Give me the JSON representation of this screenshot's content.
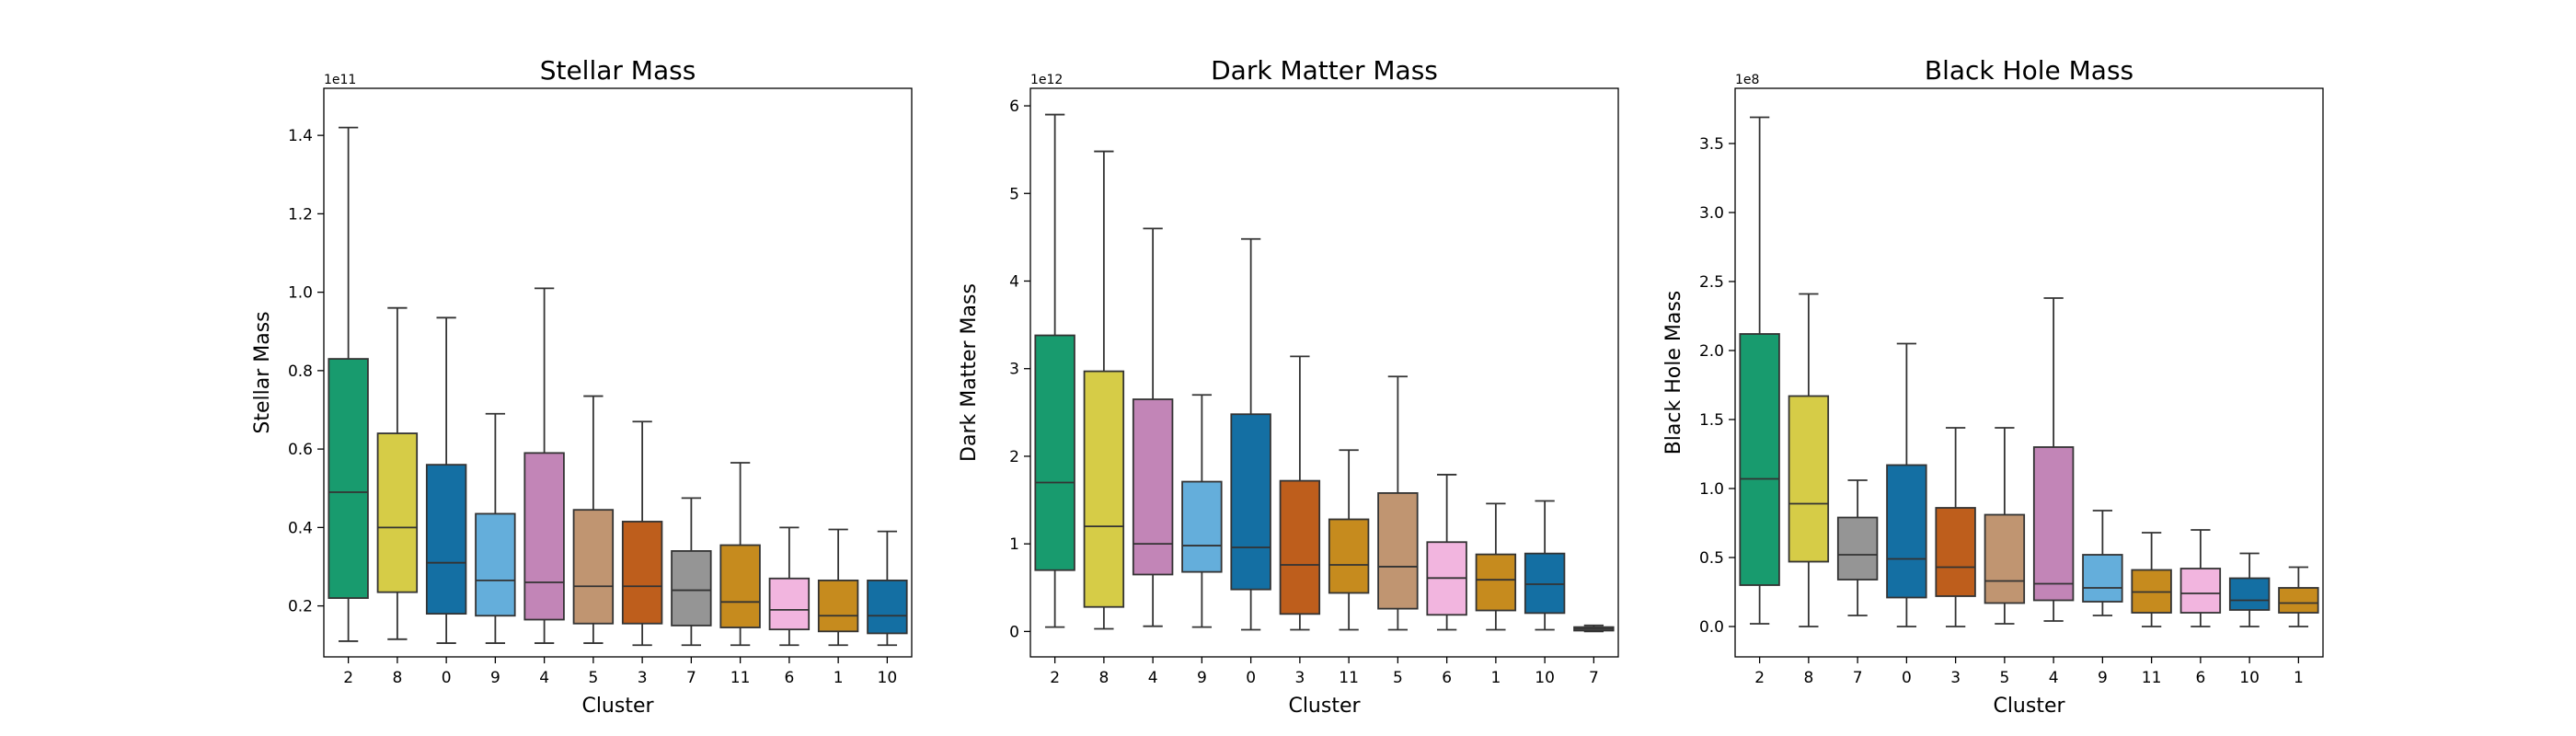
{
  "figure": {
    "background": "#ffffff"
  },
  "chart_data": [
    {
      "type": "box",
      "title": "Stellar Mass",
      "xlabel": "Cluster",
      "ylabel": "Stellar Mass",
      "offset_label": "1e11",
      "ylim": [
        0.07,
        1.52
      ],
      "yticks": [
        0.2,
        0.4,
        0.6,
        0.8,
        1.0,
        1.2,
        1.4
      ],
      "ytick_labels": [
        "0.2",
        "0.4",
        "0.6",
        "0.8",
        "1.0",
        "1.2",
        "1.4"
      ],
      "categories": [
        "2",
        "8",
        "0",
        "9",
        "4",
        "5",
        "3",
        "7",
        "11",
        "6",
        "1",
        "10"
      ],
      "boxes": [
        {
          "min": 0.11,
          "q1": 0.22,
          "median": 0.49,
          "q3": 0.83,
          "max": 1.42
        },
        {
          "min": 0.115,
          "q1": 0.235,
          "median": 0.4,
          "q3": 0.64,
          "max": 0.96
        },
        {
          "min": 0.105,
          "q1": 0.18,
          "median": 0.31,
          "q3": 0.56,
          "max": 0.935
        },
        {
          "min": 0.105,
          "q1": 0.175,
          "median": 0.265,
          "q3": 0.435,
          "max": 0.69
        },
        {
          "min": 0.105,
          "q1": 0.165,
          "median": 0.26,
          "q3": 0.59,
          "max": 1.01
        },
        {
          "min": 0.105,
          "q1": 0.155,
          "median": 0.25,
          "q3": 0.445,
          "max": 0.735
        },
        {
          "min": 0.1,
          "q1": 0.155,
          "median": 0.25,
          "q3": 0.415,
          "max": 0.67
        },
        {
          "min": 0.1,
          "q1": 0.15,
          "median": 0.24,
          "q3": 0.34,
          "max": 0.475
        },
        {
          "min": 0.1,
          "q1": 0.145,
          "median": 0.21,
          "q3": 0.355,
          "max": 0.565
        },
        {
          "min": 0.1,
          "q1": 0.14,
          "median": 0.19,
          "q3": 0.27,
          "max": 0.4
        },
        {
          "min": 0.1,
          "q1": 0.135,
          "median": 0.175,
          "q3": 0.265,
          "max": 0.395
        },
        {
          "min": 0.1,
          "q1": 0.13,
          "median": 0.175,
          "q3": 0.265,
          "max": 0.39
        }
      ],
      "colors": [
        "#189b6e",
        "#d6cc47",
        "#146fa3",
        "#64aedb",
        "#c285b7",
        "#c09571",
        "#be5e1c",
        "#959595",
        "#c68b1e",
        "#f2b5df",
        "#c68b1e",
        "#146fa3"
      ]
    },
    {
      "type": "box",
      "title": "Dark Matter Mass",
      "xlabel": "Cluster",
      "ylabel": "Dark Matter Mass",
      "offset_label": "1e12",
      "ylim": [
        -0.29,
        6.2
      ],
      "yticks": [
        0,
        1,
        2,
        3,
        4,
        5,
        6
      ],
      "ytick_labels": [
        "0",
        "1",
        "2",
        "3",
        "4",
        "5",
        "6"
      ],
      "categories": [
        "2",
        "8",
        "4",
        "9",
        "0",
        "3",
        "11",
        "5",
        "6",
        "1",
        "10",
        "7"
      ],
      "boxes": [
        {
          "min": 0.05,
          "q1": 0.7,
          "median": 1.7,
          "q3": 3.38,
          "max": 5.9
        },
        {
          "min": 0.03,
          "q1": 0.28,
          "median": 1.2,
          "q3": 2.97,
          "max": 5.48
        },
        {
          "min": 0.06,
          "q1": 0.65,
          "median": 1.0,
          "q3": 2.65,
          "max": 4.6
        },
        {
          "min": 0.05,
          "q1": 0.68,
          "median": 0.98,
          "q3": 1.71,
          "max": 2.7
        },
        {
          "min": 0.02,
          "q1": 0.48,
          "median": 0.96,
          "q3": 2.48,
          "max": 4.48
        },
        {
          "min": 0.02,
          "q1": 0.2,
          "median": 0.76,
          "q3": 1.72,
          "max": 3.14
        },
        {
          "min": 0.02,
          "q1": 0.44,
          "median": 0.76,
          "q3": 1.28,
          "max": 2.07
        },
        {
          "min": 0.02,
          "q1": 0.26,
          "median": 0.74,
          "q3": 1.58,
          "max": 2.91
        },
        {
          "min": 0.02,
          "q1": 0.19,
          "median": 0.61,
          "q3": 1.02,
          "max": 1.79
        },
        {
          "min": 0.02,
          "q1": 0.24,
          "median": 0.59,
          "q3": 0.88,
          "max": 1.46
        },
        {
          "min": 0.02,
          "q1": 0.21,
          "median": 0.54,
          "q3": 0.89,
          "max": 1.49
        },
        {
          "min": 0.0,
          "q1": 0.01,
          "median": 0.03,
          "q3": 0.05,
          "max": 0.07
        }
      ],
      "colors": [
        "#189b6e",
        "#d6cc47",
        "#c285b7",
        "#64aedb",
        "#146fa3",
        "#be5e1c",
        "#c68b1e",
        "#c09571",
        "#f2b5df",
        "#c68b1e",
        "#146fa3",
        "#959595"
      ]
    },
    {
      "type": "box",
      "title": "Black Hole Mass",
      "xlabel": "Cluster",
      "ylabel": "Black Hole Mass",
      "offset_label": "1e8",
      "ylim": [
        -0.22,
        3.9
      ],
      "yticks": [
        0.0,
        0.5,
        1.0,
        1.5,
        2.0,
        2.5,
        3.0,
        3.5
      ],
      "ytick_labels": [
        "0.0",
        "0.5",
        "1.0",
        "1.5",
        "2.0",
        "2.5",
        "3.0",
        "3.5"
      ],
      "categories": [
        "2",
        "8",
        "7",
        "0",
        "3",
        "5",
        "4",
        "9",
        "11",
        "6",
        "10",
        "1"
      ],
      "boxes": [
        {
          "min": 0.02,
          "q1": 0.3,
          "median": 1.07,
          "q3": 2.12,
          "max": 3.69
        },
        {
          "min": 0.0,
          "q1": 0.47,
          "median": 0.89,
          "q3": 1.67,
          "max": 2.41
        },
        {
          "min": 0.08,
          "q1": 0.34,
          "median": 0.52,
          "q3": 0.79,
          "max": 1.06
        },
        {
          "min": 0.0,
          "q1": 0.21,
          "median": 0.49,
          "q3": 1.17,
          "max": 2.05
        },
        {
          "min": 0.0,
          "q1": 0.22,
          "median": 0.43,
          "q3": 0.86,
          "max": 1.44
        },
        {
          "min": 0.02,
          "q1": 0.17,
          "median": 0.33,
          "q3": 0.81,
          "max": 1.44
        },
        {
          "min": 0.04,
          "q1": 0.19,
          "median": 0.31,
          "q3": 1.3,
          "max": 2.38
        },
        {
          "min": 0.08,
          "q1": 0.18,
          "median": 0.28,
          "q3": 0.52,
          "max": 0.84
        },
        {
          "min": 0.0,
          "q1": 0.1,
          "median": 0.25,
          "q3": 0.41,
          "max": 0.68
        },
        {
          "min": 0.0,
          "q1": 0.1,
          "median": 0.24,
          "q3": 0.42,
          "max": 0.7
        },
        {
          "min": 0.0,
          "q1": 0.12,
          "median": 0.19,
          "q3": 0.35,
          "max": 0.53
        },
        {
          "min": 0.0,
          "q1": 0.1,
          "median": 0.17,
          "q3": 0.28,
          "max": 0.43
        }
      ],
      "colors": [
        "#189b6e",
        "#d6cc47",
        "#959595",
        "#146fa3",
        "#be5e1c",
        "#c09571",
        "#c285b7",
        "#64aedb",
        "#c68b1e",
        "#f2b5df",
        "#146fa3",
        "#c68b1e"
      ]
    }
  ]
}
